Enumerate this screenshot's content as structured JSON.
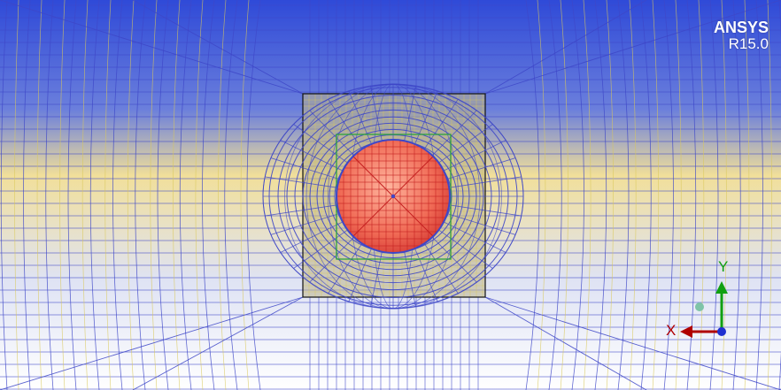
{
  "branding": {
    "product": "ANSYS",
    "release": "R15.0"
  },
  "triad": {
    "x_label": "X",
    "y_label": "Y",
    "colors": {
      "x": "#b00000",
      "y": "#10a010",
      "z": "#2030d0",
      "iso_ball": "#7fc4a8"
    }
  },
  "colors": {
    "background_top": "#2f4ad8",
    "background_mid": "#f1df9a",
    "background_bottom": "#ffffff",
    "mesh_blue": "#3e47c8",
    "mesh_yellow": "#d9c85a",
    "sphere_fill": "#f06a55",
    "sphere_mesh": "#c42020",
    "box_outline": "#111111",
    "inner_box": "#2ea23c"
  }
}
